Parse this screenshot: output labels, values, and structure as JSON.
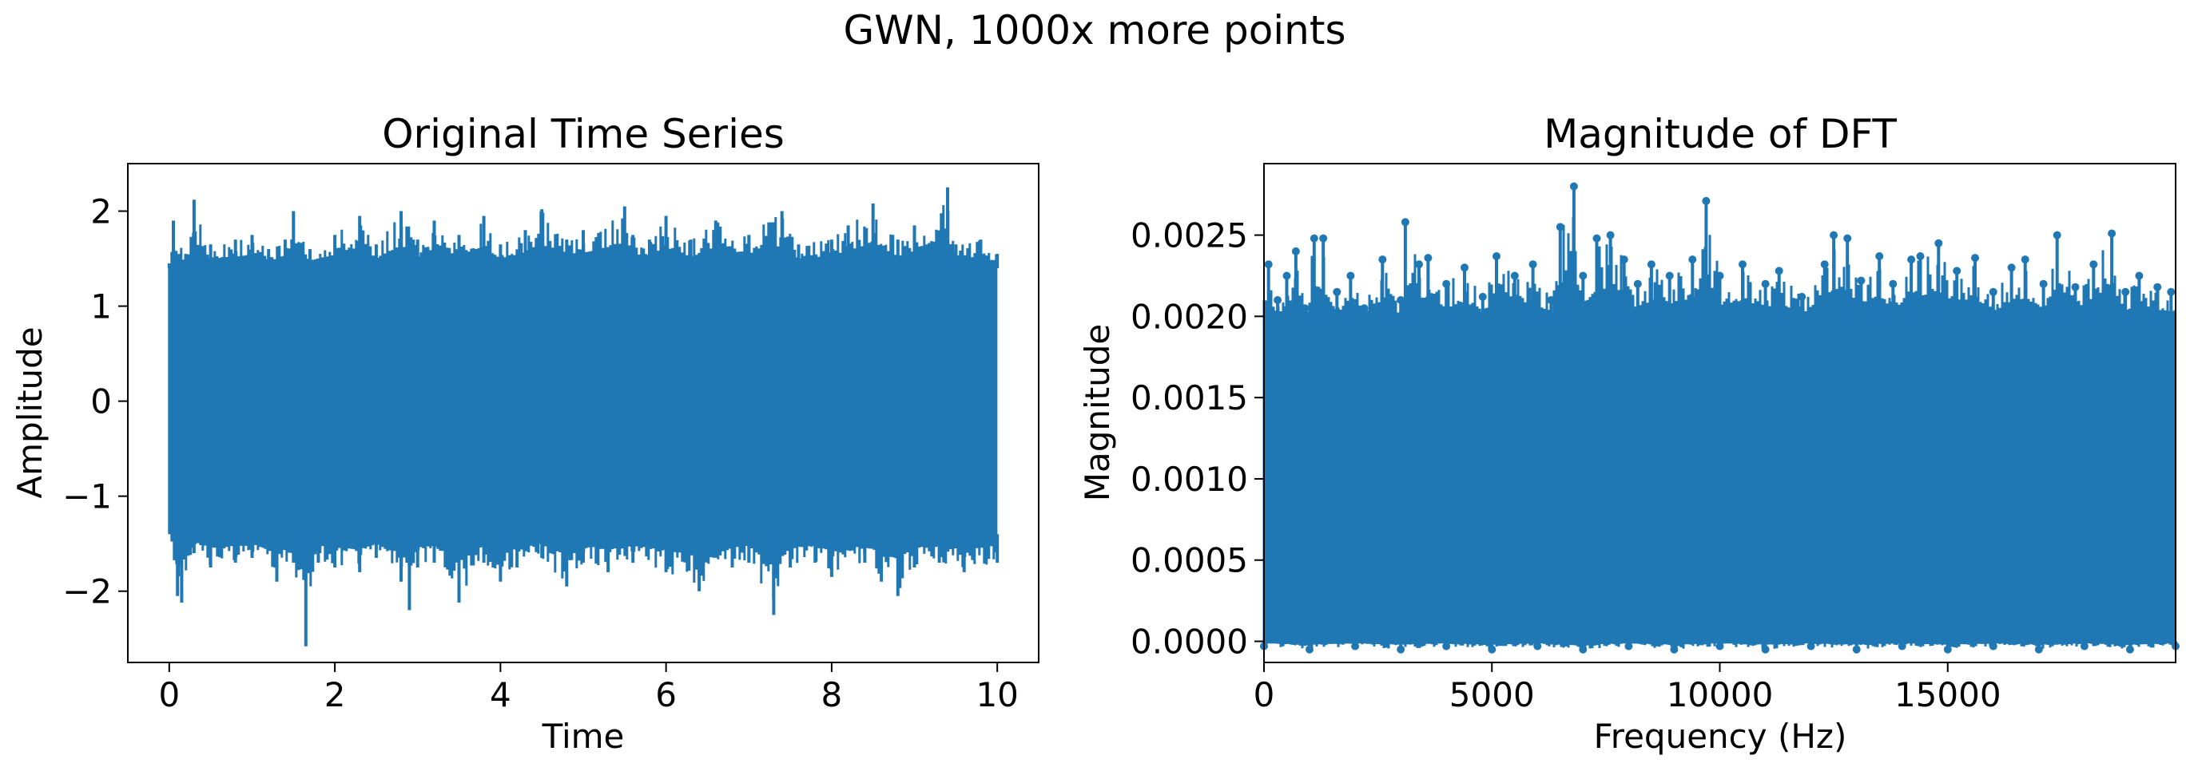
{
  "figure": {
    "suptitle": "GWN, 1000x more points"
  },
  "colors": {
    "series": "#1f77b4",
    "axes": "#000000",
    "background": "#ffffff"
  },
  "chart_data": [
    {
      "type": "line",
      "title": "Original Time Series",
      "xlabel": "Time",
      "ylabel": "Amplitude",
      "xlim": [
        -0.5,
        10.5
      ],
      "ylim": [
        -2.75,
        2.5
      ],
      "xticks": [
        0,
        2,
        4,
        6,
        8,
        10
      ],
      "xtick_labels": [
        "0",
        "2",
        "4",
        "6",
        "8",
        "10"
      ],
      "yticks": [
        -2,
        -1,
        0,
        1,
        2
      ],
      "ytick_labels": [
        "−2",
        "−1",
        "0",
        "1",
        "2"
      ],
      "grid": false,
      "series": [
        {
          "x_range": [
            0,
            10
          ],
          "fill_band": [
            -1.4,
            1.4
          ],
          "envelope_upper": [
            [
              0.0,
              1.45
            ],
            [
              0.05,
              1.9
            ],
            [
              0.2,
              1.55
            ],
            [
              0.3,
              2.12
            ],
            [
              0.5,
              1.65
            ],
            [
              0.8,
              1.7
            ],
            [
              1.0,
              1.75
            ],
            [
              1.2,
              1.6
            ],
            [
              1.4,
              1.7
            ],
            [
              1.5,
              2.0
            ],
            [
              1.7,
              1.6
            ],
            [
              2.0,
              1.75
            ],
            [
              2.3,
              1.95
            ],
            [
              2.5,
              1.65
            ],
            [
              2.8,
              2.0
            ],
            [
              3.0,
              1.7
            ],
            [
              3.2,
              1.9
            ],
            [
              3.5,
              1.75
            ],
            [
              3.8,
              1.95
            ],
            [
              4.0,
              1.65
            ],
            [
              4.3,
              1.8
            ],
            [
              4.5,
              2.02
            ],
            [
              4.8,
              1.7
            ],
            [
              5.0,
              1.8
            ],
            [
              5.5,
              2.05
            ],
            [
              5.6,
              1.75
            ],
            [
              5.8,
              1.7
            ],
            [
              6.0,
              1.95
            ],
            [
              6.3,
              1.7
            ],
            [
              6.6,
              1.9
            ],
            [
              7.0,
              1.75
            ],
            [
              7.4,
              2.0
            ],
            [
              7.6,
              1.65
            ],
            [
              8.0,
              1.7
            ],
            [
              8.2,
              1.85
            ],
            [
              8.5,
              2.08
            ],
            [
              8.8,
              1.7
            ],
            [
              9.0,
              1.85
            ],
            [
              9.4,
              2.25
            ],
            [
              9.5,
              1.65
            ],
            [
              9.8,
              1.7
            ],
            [
              10.0,
              1.55
            ]
          ],
          "envelope_lower": [
            [
              0.0,
              -1.4
            ],
            [
              0.1,
              -2.05
            ],
            [
              0.15,
              -2.12
            ],
            [
              0.3,
              -1.6
            ],
            [
              0.5,
              -1.75
            ],
            [
              0.8,
              -1.7
            ],
            [
              1.0,
              -1.65
            ],
            [
              1.3,
              -1.9
            ],
            [
              1.5,
              -1.7
            ],
            [
              1.65,
              -2.58
            ],
            [
              1.8,
              -1.7
            ],
            [
              2.0,
              -1.75
            ],
            [
              2.3,
              -1.8
            ],
            [
              2.5,
              -1.65
            ],
            [
              2.8,
              -1.9
            ],
            [
              2.9,
              -2.2
            ],
            [
              3.0,
              -1.75
            ],
            [
              3.2,
              -1.7
            ],
            [
              3.5,
              -2.12
            ],
            [
              3.8,
              -1.7
            ],
            [
              4.0,
              -1.9
            ],
            [
              4.2,
              -1.75
            ],
            [
              4.5,
              -1.65
            ],
            [
              4.8,
              -1.95
            ],
            [
              5.0,
              -1.7
            ],
            [
              5.3,
              -1.8
            ],
            [
              5.6,
              -1.7
            ],
            [
              6.0,
              -1.8
            ],
            [
              6.4,
              -2.0
            ],
            [
              6.8,
              -1.75
            ],
            [
              7.0,
              -1.7
            ],
            [
              7.3,
              -2.25
            ],
            [
              7.5,
              -1.75
            ],
            [
              7.8,
              -1.7
            ],
            [
              8.0,
              -1.85
            ],
            [
              8.4,
              -1.7
            ],
            [
              8.6,
              -1.9
            ],
            [
              8.8,
              -2.05
            ],
            [
              9.0,
              -1.75
            ],
            [
              9.3,
              -1.7
            ],
            [
              9.6,
              -1.8
            ],
            [
              10.0,
              -1.7
            ]
          ]
        }
      ]
    },
    {
      "type": "line",
      "title": "Magnitude of DFT",
      "xlabel": "Frequency (Hz)",
      "ylabel": "Magnitude",
      "xlim": [
        0,
        20000
      ],
      "ylim": [
        -0.00013,
        0.00294
      ],
      "xticks": [
        0,
        5000,
        10000,
        15000
      ],
      "xtick_labels": [
        "0",
        "5000",
        "10000",
        "15000"
      ],
      "yticks": [
        0,
        0.0005,
        0.001,
        0.0015,
        0.002,
        0.0025
      ],
      "ytick_labels": [
        "0.0000",
        "0.0005",
        "0.0010",
        "0.0015",
        "0.0020",
        "0.0025"
      ],
      "grid": false,
      "series": [
        {
          "marker": "o",
          "x_range": [
            0,
            20000
          ],
          "fill_band": [
            0,
            0.00195
          ],
          "envelope_upper": [
            [
              100,
              0.00232
            ],
            [
              300,
              0.0021
            ],
            [
              500,
              0.00225
            ],
            [
              700,
              0.0024
            ],
            [
              900,
              0.00205
            ],
            [
              1100,
              0.00248
            ],
            [
              1300,
              0.00248
            ],
            [
              1600,
              0.00215
            ],
            [
              1900,
              0.00225
            ],
            [
              2200,
              0.00205
            ],
            [
              2600,
              0.00235
            ],
            [
              3000,
              0.0021
            ],
            [
              3100,
              0.00258
            ],
            [
              3400,
              0.00232
            ],
            [
              3600,
              0.00236
            ],
            [
              4000,
              0.0022
            ],
            [
              4400,
              0.0023
            ],
            [
              4800,
              0.00212
            ],
            [
              5100,
              0.00237
            ],
            [
              5500,
              0.00225
            ],
            [
              5900,
              0.00232
            ],
            [
              6300,
              0.0021
            ],
            [
              6500,
              0.00255
            ],
            [
              6800,
              0.0028
            ],
            [
              7000,
              0.00225
            ],
            [
              7300,
              0.00248
            ],
            [
              7600,
              0.0025
            ],
            [
              7900,
              0.00235
            ],
            [
              8200,
              0.0022
            ],
            [
              8500,
              0.00232
            ],
            [
              8900,
              0.00225
            ],
            [
              9400,
              0.00235
            ],
            [
              9700,
              0.00271
            ],
            [
              10000,
              0.00225
            ],
            [
              10500,
              0.00232
            ],
            [
              11000,
              0.0022
            ],
            [
              11300,
              0.00228
            ],
            [
              11800,
              0.00212
            ],
            [
              12300,
              0.00232
            ],
            [
              12500,
              0.0025
            ],
            [
              12800,
              0.00248
            ],
            [
              13100,
              0.00222
            ],
            [
              13500,
              0.00237
            ],
            [
              13800,
              0.0022
            ],
            [
              14200,
              0.00235
            ],
            [
              14400,
              0.00237
            ],
            [
              14800,
              0.00245
            ],
            [
              15200,
              0.00228
            ],
            [
              15600,
              0.00236
            ],
            [
              16000,
              0.00215
            ],
            [
              16400,
              0.0023
            ],
            [
              16700,
              0.00235
            ],
            [
              17100,
              0.0022
            ],
            [
              17400,
              0.0025
            ],
            [
              17800,
              0.00218
            ],
            [
              18200,
              0.00232
            ],
            [
              18600,
              0.00251
            ],
            [
              18900,
              0.00215
            ],
            [
              19200,
              0.00225
            ],
            [
              19600,
              0.00218
            ],
            [
              19900,
              0.00215
            ]
          ],
          "envelope_lower": [
            [
              0,
              -3e-05
            ],
            [
              1000,
              -5e-05
            ],
            [
              2000,
              -3e-05
            ],
            [
              3000,
              -5e-05
            ],
            [
              4000,
              -3e-05
            ],
            [
              5000,
              -5e-05
            ],
            [
              6000,
              -3e-05
            ],
            [
              7000,
              -5e-05
            ],
            [
              8000,
              -3e-05
            ],
            [
              9000,
              -5e-05
            ],
            [
              10000,
              -3e-05
            ],
            [
              11000,
              -5e-05
            ],
            [
              12000,
              -3e-05
            ],
            [
              13000,
              -5e-05
            ],
            [
              14000,
              -3e-05
            ],
            [
              15000,
              -5e-05
            ],
            [
              16000,
              -3e-05
            ],
            [
              17000,
              -5e-05
            ],
            [
              18000,
              -3e-05
            ],
            [
              19000,
              -5e-05
            ],
            [
              20000,
              -3e-05
            ]
          ]
        }
      ]
    }
  ]
}
